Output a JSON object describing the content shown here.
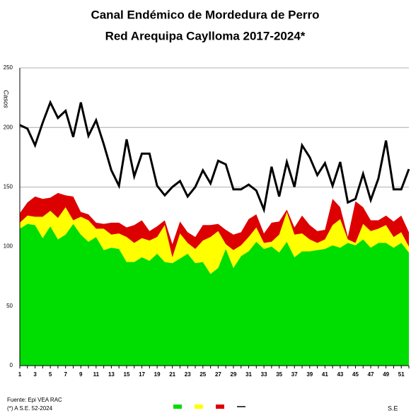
{
  "chart_data": {
    "type": "stacked_area_line",
    "title": "Canal Endémico de Mordedura de Perro",
    "subtitle": "Red Arequipa Caylloma 2017-2024*",
    "y_label": "Casos",
    "x_label": "S.E",
    "source": "Fuente: Epi VEA RAC",
    "note": "(*) A S.E. 52-2024",
    "categories": [
      1,
      null,
      3,
      null,
      5,
      null,
      7,
      null,
      9,
      null,
      11,
      null,
      13,
      null,
      15,
      null,
      17,
      null,
      19,
      null,
      21,
      null,
      23,
      null,
      25,
      null,
      27,
      null,
      29,
      null,
      31,
      null,
      33,
      null,
      35,
      null,
      37,
      null,
      39,
      null,
      41,
      null,
      43,
      null,
      45,
      null,
      47,
      null,
      49,
      null,
      51,
      null
    ],
    "ylim": [
      0,
      250
    ],
    "yticks": [
      0,
      50,
      100,
      150,
      200,
      250
    ],
    "grid": true,
    "series": [
      {
        "color": "#00dd00",
        "kind": "area",
        "values": [
          115,
          119,
          118,
          107,
          117,
          106,
          110,
          119,
          110,
          104,
          108,
          97,
          99,
          98,
          87,
          87,
          91,
          88,
          94,
          87,
          86,
          90,
          94,
          86,
          87,
          77,
          82,
          98,
          82,
          92,
          96,
          104,
          98,
          100,
          95,
          104,
          91,
          96,
          96,
          97,
          98,
          101,
          99,
          103,
          101,
          106,
          99,
          103,
          103,
          99,
          103,
          95
        ]
      },
      {
        "color": "#ffff00",
        "kind": "area",
        "values": [
          5,
          7,
          7,
          18,
          13,
          18,
          23,
          3,
          15,
          18,
          7,
          18,
          11,
          13,
          21,
          16,
          16,
          17,
          14,
          31,
          5,
          21,
          9,
          12,
          18,
          31,
          31,
          4,
          15,
          9,
          12,
          12,
          5,
          4,
          15,
          25,
          19,
          15,
          10,
          6,
          8,
          17,
          24,
          3,
          2,
          13,
          14,
          12,
          15,
          9,
          9,
          5
        ]
      },
      {
        "color": "#dd0000",
        "kind": "area",
        "values": [
          8,
          11,
          17,
          15,
          11,
          21,
          10,
          20,
          4,
          5,
          5,
          4,
          10,
          9,
          8,
          15,
          15,
          8,
          9,
          4,
          11,
          10,
          9,
          10,
          13,
          10,
          6,
          12,
          13,
          11,
          15,
          11,
          8,
          16,
          11,
          2,
          6,
          15,
          12,
          10,
          8,
          22,
          10,
          2,
          35,
          14,
          9,
          7,
          8,
          13,
          14,
          12
        ]
      },
      {
        "color": "#000000",
        "kind": "line",
        "values": [
          202,
          199,
          185,
          204,
          221,
          208,
          214,
          192,
          221,
          193,
          206,
          186,
          164,
          151,
          190,
          159,
          178,
          178,
          151,
          143,
          150,
          155,
          142,
          150,
          164,
          153,
          172,
          169,
          148,
          148,
          152,
          147,
          131,
          167,
          142,
          171,
          150,
          185,
          175,
          160,
          170,
          151,
          171,
          137,
          140,
          161,
          139,
          157,
          189,
          148,
          148,
          165
        ]
      }
    ]
  }
}
